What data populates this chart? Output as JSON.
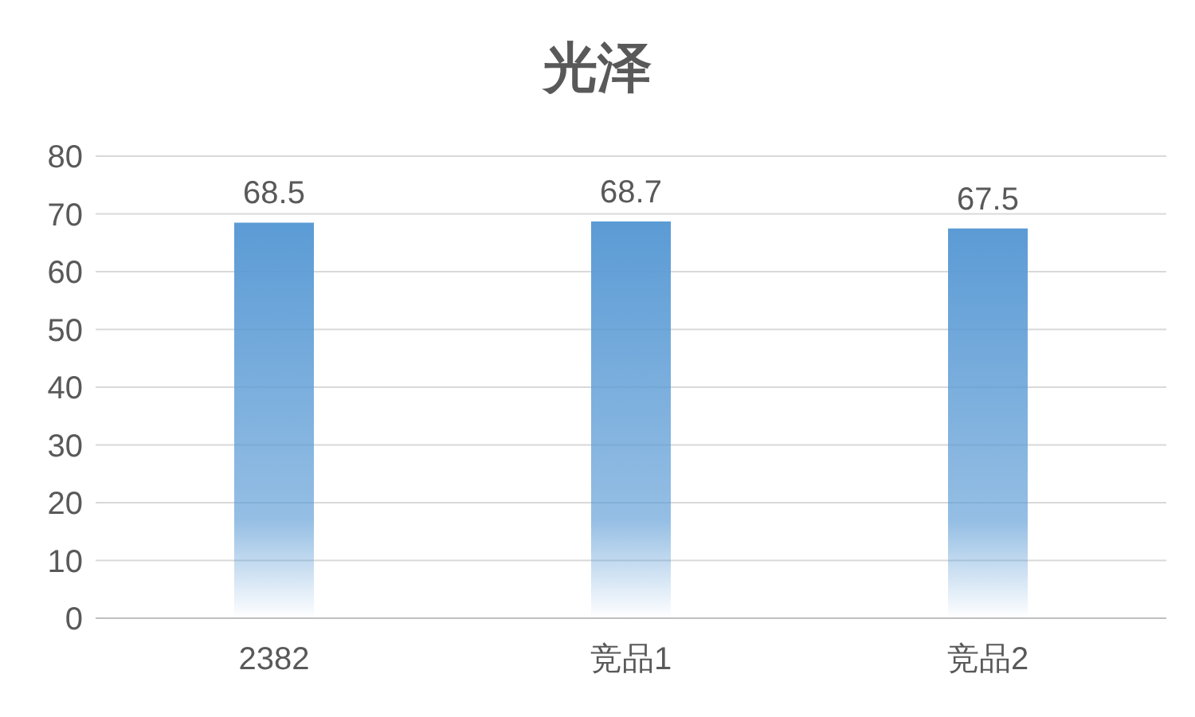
{
  "chart_data": {
    "type": "bar",
    "title": "光泽",
    "categories": [
      "2382",
      "竞品1",
      "竞品2"
    ],
    "values": [
      68.5,
      68.7,
      67.5
    ],
    "color": "#5b9bd5",
    "ylim": [
      0,
      80
    ],
    "yticks": [
      0,
      10,
      20,
      30,
      40,
      50,
      60,
      70,
      80
    ],
    "grid": "y",
    "data_labels": true
  }
}
